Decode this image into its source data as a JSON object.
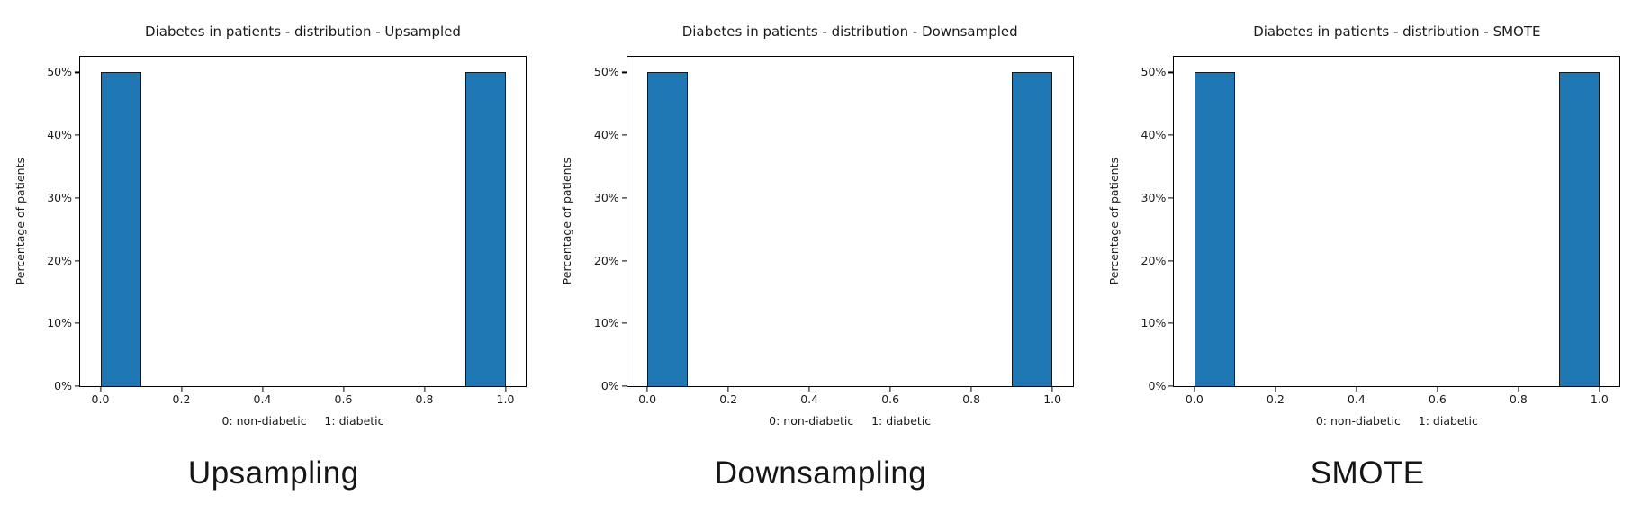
{
  "colors": {
    "bar_fill": "#1f77b4",
    "bar_edge": "#12181f",
    "axis": "#000000",
    "tick_text": "#1a1a1a",
    "caption_text": "#161616",
    "background": "#ffffff"
  },
  "chart_data": [
    {
      "type": "bar",
      "title": "Diabetes in patients - distribution - Upsampled",
      "caption": "Upsampling",
      "xlabel": "0: non-diabetic     1: diabetic",
      "ylabel": "Percentage of patients",
      "categories": [
        "0: non-diabetic",
        "1: diabetic"
      ],
      "values_percent": [
        50,
        50
      ],
      "bars": [
        {
          "x0": 0.0,
          "x1": 0.1,
          "value": 50
        },
        {
          "x0": 0.9,
          "x1": 1.0,
          "value": 50
        }
      ],
      "x_ticks": [
        {
          "v": 0.0,
          "label": "0.0"
        },
        {
          "v": 0.2,
          "label": "0.2"
        },
        {
          "v": 0.4,
          "label": "0.4"
        },
        {
          "v": 0.6,
          "label": "0.6"
        },
        {
          "v": 0.8,
          "label": "0.8"
        },
        {
          "v": 1.0,
          "label": "1.0"
        }
      ],
      "y_ticks": [
        {
          "v": 0,
          "label": "0%"
        },
        {
          "v": 10,
          "label": "10%"
        },
        {
          "v": 20,
          "label": "20%"
        },
        {
          "v": 30,
          "label": "30%"
        },
        {
          "v": 40,
          "label": "40%"
        },
        {
          "v": 50,
          "label": "50%"
        }
      ],
      "xlim": [
        -0.05,
        1.05
      ],
      "ylim": [
        0,
        52.5
      ],
      "grid": false,
      "legend": null
    },
    {
      "type": "bar",
      "title": "Diabetes in patients - distribution - Downsampled",
      "caption": "Downsampling",
      "xlabel": "0: non-diabetic     1: diabetic",
      "ylabel": "Percentage of patients",
      "categories": [
        "0: non-diabetic",
        "1: diabetic"
      ],
      "values_percent": [
        50,
        50
      ],
      "bars": [
        {
          "x0": 0.0,
          "x1": 0.1,
          "value": 50
        },
        {
          "x0": 0.9,
          "x1": 1.0,
          "value": 50
        }
      ],
      "x_ticks": [
        {
          "v": 0.0,
          "label": "0.0"
        },
        {
          "v": 0.2,
          "label": "0.2"
        },
        {
          "v": 0.4,
          "label": "0.4"
        },
        {
          "v": 0.6,
          "label": "0.6"
        },
        {
          "v": 0.8,
          "label": "0.8"
        },
        {
          "v": 1.0,
          "label": "1.0"
        }
      ],
      "y_ticks": [
        {
          "v": 0,
          "label": "0%"
        },
        {
          "v": 10,
          "label": "10%"
        },
        {
          "v": 20,
          "label": "20%"
        },
        {
          "v": 30,
          "label": "30%"
        },
        {
          "v": 40,
          "label": "40%"
        },
        {
          "v": 50,
          "label": "50%"
        }
      ],
      "xlim": [
        -0.05,
        1.05
      ],
      "ylim": [
        0,
        52.5
      ],
      "grid": false,
      "legend": null
    },
    {
      "type": "bar",
      "title": "Diabetes in patients - distribution - SMOTE",
      "caption": "SMOTE",
      "xlabel": "0: non-diabetic     1: diabetic",
      "ylabel": "Percentage of patients",
      "categories": [
        "0: non-diabetic",
        "1: diabetic"
      ],
      "values_percent": [
        50,
        50
      ],
      "bars": [
        {
          "x0": 0.0,
          "x1": 0.1,
          "value": 50
        },
        {
          "x0": 0.9,
          "x1": 1.0,
          "value": 50
        }
      ],
      "x_ticks": [
        {
          "v": 0.0,
          "label": "0.0"
        },
        {
          "v": 0.2,
          "label": "0.2"
        },
        {
          "v": 0.4,
          "label": "0.4"
        },
        {
          "v": 0.6,
          "label": "0.6"
        },
        {
          "v": 0.8,
          "label": "0.8"
        },
        {
          "v": 1.0,
          "label": "1.0"
        }
      ],
      "y_ticks": [
        {
          "v": 0,
          "label": "0%"
        },
        {
          "v": 10,
          "label": "10%"
        },
        {
          "v": 20,
          "label": "20%"
        },
        {
          "v": 30,
          "label": "30%"
        },
        {
          "v": 40,
          "label": "40%"
        },
        {
          "v": 50,
          "label": "50%"
        }
      ],
      "xlim": [
        -0.05,
        1.05
      ],
      "ylim": [
        0,
        52.5
      ],
      "grid": false,
      "legend": null
    }
  ]
}
